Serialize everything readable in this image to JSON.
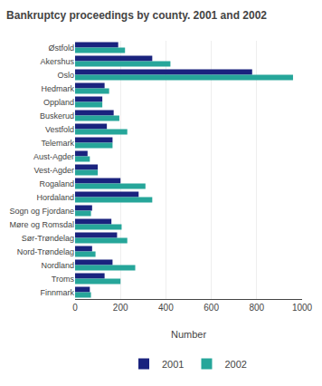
{
  "chart_data": {
    "type": "bar",
    "orientation": "horizontal",
    "title": "Bankruptcy proceedings by county. 2001 and 2002",
    "categories": [
      "Østfold",
      "Akershus",
      "Oslo",
      "Hedmark",
      "Oppland",
      "Buskerud",
      "Vestfold",
      "Telemark",
      "Aust-Agder",
      "Vest-Agder",
      "Rogaland",
      "Hordaland",
      "Sogn og Fjordane",
      "Møre og Romsdal",
      "Sør-Trøndelag",
      "Nord-Trøndelag",
      "Nordland",
      "Troms",
      "Finnmark"
    ],
    "series": [
      {
        "name": "2001",
        "color": "#1a237e",
        "values": [
          190,
          340,
          780,
          130,
          120,
          170,
          140,
          165,
          55,
          100,
          200,
          280,
          75,
          160,
          185,
          75,
          165,
          130,
          65
        ]
      },
      {
        "name": "2002",
        "color": "#26a69a",
        "values": [
          220,
          420,
          960,
          150,
          120,
          195,
          230,
          165,
          65,
          100,
          310,
          340,
          70,
          205,
          230,
          90,
          265,
          200,
          70
        ]
      }
    ],
    "xlabel": "Number",
    "xlim": [
      0,
      1000
    ],
    "xticks": [
      0,
      200,
      400,
      600,
      800,
      1000
    ],
    "grid": true,
    "legend": "bottom"
  }
}
